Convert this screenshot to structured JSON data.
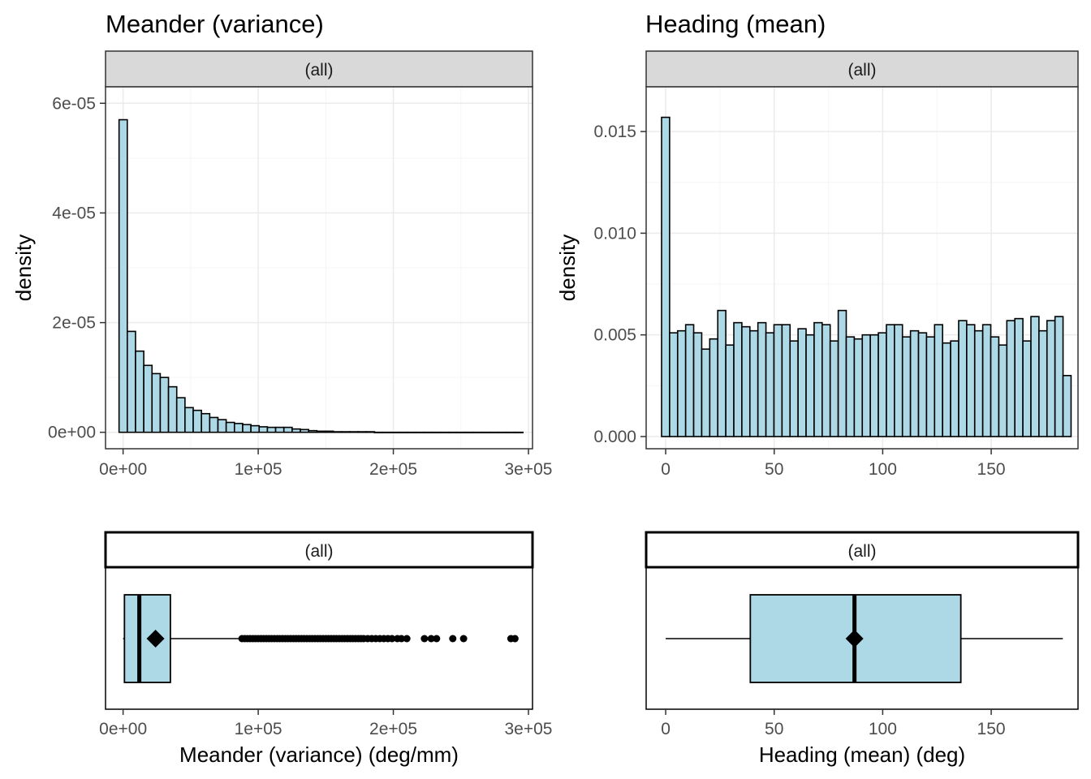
{
  "chart_data": [
    {
      "id": "meander_hist",
      "type": "bar",
      "title": "Meander (variance)",
      "facet": "(all)",
      "xlabel": "",
      "ylabel": "density",
      "xlim": [
        -13000,
        303000
      ],
      "ylim": [
        -3e-06,
        6.3e-05
      ],
      "grid": true,
      "xticks": [
        0,
        100000,
        200000,
        300000
      ],
      "xtick_labels": [
        "0e+00",
        "1e+05",
        "2e+05",
        "3e+05"
      ],
      "yticks": [
        0,
        2e-05,
        4e-05,
        6e-05
      ],
      "ytick_labels": [
        "0e+00",
        "2e-05",
        "4e-05",
        "6e-05"
      ],
      "bin_start": -3000,
      "bin_width": 6100,
      "values": [
        5.7e-05,
        1.84e-05,
        1.48e-05,
        1.22e-05,
        1.07e-05,
        1e-05,
        8.3e-06,
        6.3e-06,
        4.5e-06,
        4e-06,
        3.4e-06,
        2.7e-06,
        2.3e-06,
        1.8e-06,
        1.6e-06,
        1.4e-06,
        1.2e-06,
        1e-06,
        9e-07,
        9e-07,
        9e-07,
        6e-07,
        5e-07,
        3e-07,
        2e-07,
        2e-07,
        1e-07,
        1e-07,
        1e-07,
        1e-07,
        1e-07,
        0,
        0,
        0,
        0,
        0,
        0,
        0,
        0,
        0,
        0,
        0,
        0,
        0,
        0,
        0,
        0,
        0,
        0
      ]
    },
    {
      "id": "heading_hist",
      "type": "bar",
      "title": "Heading (mean)",
      "facet": "(all)",
      "xlabel": "",
      "ylabel": "density",
      "xlim": [
        -9,
        190
      ],
      "ylim": [
        -0.0006,
        0.0172
      ],
      "grid": true,
      "xticks": [
        0,
        50,
        100,
        150
      ],
      "xtick_labels": [
        "0",
        "50",
        "100",
        "150"
      ],
      "yticks": [
        0,
        0.005,
        0.01,
        0.015
      ],
      "ytick_labels": [
        "0.000",
        "0.005",
        "0.010",
        "0.015"
      ],
      "bin_start": -1.9,
      "bin_width": 3.7,
      "values": [
        0.0157,
        0.0051,
        0.0052,
        0.0055,
        0.0051,
        0.0043,
        0.0048,
        0.0062,
        0.0045,
        0.0056,
        0.0054,
        0.0052,
        0.0056,
        0.0051,
        0.0055,
        0.0055,
        0.0047,
        0.0053,
        0.005,
        0.0056,
        0.0055,
        0.0047,
        0.0062,
        0.0049,
        0.0048,
        0.005,
        0.005,
        0.0051,
        0.0055,
        0.0055,
        0.0049,
        0.0052,
        0.0051,
        0.0049,
        0.0055,
        0.0046,
        0.0047,
        0.0057,
        0.0055,
        0.0052,
        0.0055,
        0.0049,
        0.0045,
        0.0057,
        0.0058,
        0.0047,
        0.0059,
        0.0052,
        0.0057,
        0.0059,
        0.003
      ]
    },
    {
      "id": "meander_box",
      "type": "boxplot",
      "title": "",
      "facet": "(all)",
      "xlabel": "Meander (variance) (deg/mm)",
      "ylabel": "",
      "xlim": [
        -13000,
        303000
      ],
      "xticks": [
        0,
        100000,
        200000,
        300000
      ],
      "xtick_labels": [
        "0e+00",
        "1e+05",
        "2e+05",
        "3e+05"
      ],
      "min": 0,
      "q1": 1000,
      "median": 12000,
      "q3": 35000,
      "whisker_high": 86000,
      "mean": 24000,
      "outliers": [
        88000,
        90000,
        92000,
        94000,
        96000,
        98000,
        100000,
        102000,
        104000,
        106000,
        108000,
        110000,
        112000,
        114000,
        116000,
        118000,
        120000,
        122000,
        124000,
        126000,
        128000,
        130000,
        132000,
        134000,
        136000,
        138000,
        140000,
        142000,
        144000,
        146000,
        148000,
        150000,
        152000,
        154000,
        156000,
        158000,
        160000,
        162000,
        164000,
        166000,
        168000,
        170000,
        172000,
        174000,
        176000,
        178000,
        181000,
        184000,
        187000,
        190000,
        193000,
        196000,
        199000,
        203000,
        206000,
        210000,
        223000,
        228000,
        232000,
        244000,
        252000,
        287000,
        290000
      ]
    },
    {
      "id": "heading_box",
      "type": "boxplot",
      "title": "",
      "facet": "(all)",
      "xlabel": "Heading (mean) (deg)",
      "ylabel": "",
      "xlim": [
        -9,
        190
      ],
      "xticks": [
        0,
        50,
        100,
        150
      ],
      "xtick_labels": [
        "0",
        "50",
        "100",
        "150"
      ],
      "min": 0,
      "q1": 39,
      "median": 87,
      "q3": 136,
      "whisker_high": 183,
      "mean": 87,
      "outliers": []
    }
  ],
  "colors": {
    "fill": "#add8e6",
    "outline": "#000000",
    "strip_fill": "#d9d9d9",
    "grid_major": "#ebebeb",
    "grid_minor": "#f5f5f5",
    "panel_border": "#333333",
    "tick_text": "#4d4d4d"
  }
}
